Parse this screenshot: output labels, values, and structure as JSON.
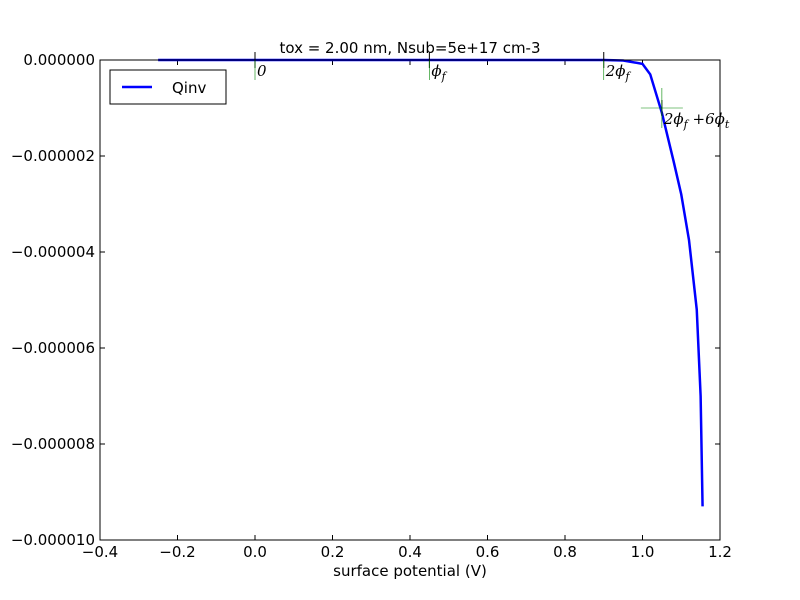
{
  "chart_data": {
    "type": "line",
    "title": "tox =  2.00 nm, Nsub=5e+17 cm-3",
    "x_label": "surface potential (V)",
    "x": [
      -0.25,
      0,
      0.3,
      0.6,
      0.9,
      0.95,
      1.0,
      1.02,
      1.05,
      1.08,
      1.1,
      1.12,
      1.14,
      1.15,
      1.155
    ],
    "series": [
      {
        "name": "Qinv",
        "color": "#0000ff",
        "values": [
          0,
          0,
          0,
          0,
          0,
          -1e-08,
          -8e-08,
          -3e-07,
          -1.1e-06,
          -2.1e-06,
          -2.8e-06,
          -3.75e-06,
          -5.2e-06,
          -7e-06,
          -9.3e-06
        ]
      }
    ],
    "xlim": [
      -0.4,
      1.2
    ],
    "xticks": [
      {
        "value": -0.4,
        "label": "−0.4"
      },
      {
        "value": -0.2,
        "label": "−0.2"
      },
      {
        "value": 0,
        "label": "0.0"
      },
      {
        "value": 0.2,
        "label": "0.2"
      },
      {
        "value": 0.4,
        "label": "0.4"
      },
      {
        "value": 0.6,
        "label": "0.6"
      },
      {
        "value": 0.8,
        "label": "0.8"
      },
      {
        "value": 1.0,
        "label": "1.0"
      },
      {
        "value": 1.2,
        "label": "1.2"
      }
    ],
    "ylim": [
      -1e-05,
      0
    ],
    "yticks": [
      {
        "value": 0,
        "label": "0.000000"
      },
      {
        "value": -2e-06,
        "label": "−0.000002"
      },
      {
        "value": -4e-06,
        "label": "−0.000004"
      },
      {
        "value": -6e-06,
        "label": "−0.000006"
      },
      {
        "value": -8e-06,
        "label": "−0.000008"
      },
      {
        "value": -1e-05,
        "label": "−0.000010"
      }
    ],
    "legend": "upper left",
    "markers": [
      {
        "x": 0,
        "y": 0,
        "label": [
          "0"
        ]
      },
      {
        "x": 0.45,
        "y": 0,
        "label": [
          "ϕ",
          "f"
        ]
      },
      {
        "x": 0.9,
        "y": 0,
        "label": [
          "2ϕ",
          "f"
        ]
      },
      {
        "x": 1.05,
        "y": -1e-06,
        "label": [
          "2ϕ",
          "f",
          " +6ϕ",
          "t"
        ]
      }
    ]
  }
}
